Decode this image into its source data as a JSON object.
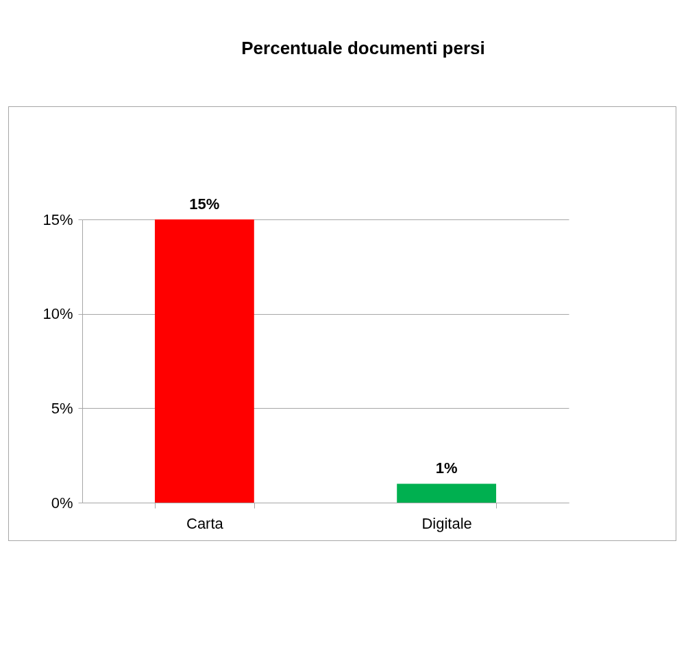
{
  "chart_data": {
    "type": "bar",
    "title": "Percentuale documenti persi",
    "categories": [
      "Carta",
      "Digitale"
    ],
    "values": [
      15,
      1
    ],
    "colors": [
      "#ff0000",
      "#00b050"
    ],
    "value_labels": [
      "15%",
      "1%"
    ],
    "ylim": [
      0,
      15
    ],
    "yticks": [
      {
        "value": 0,
        "label": "0%"
      },
      {
        "value": 5,
        "label": "5%"
      },
      {
        "value": 10,
        "label": "10%"
      },
      {
        "value": 15,
        "label": "15%"
      }
    ],
    "grid": "y"
  }
}
